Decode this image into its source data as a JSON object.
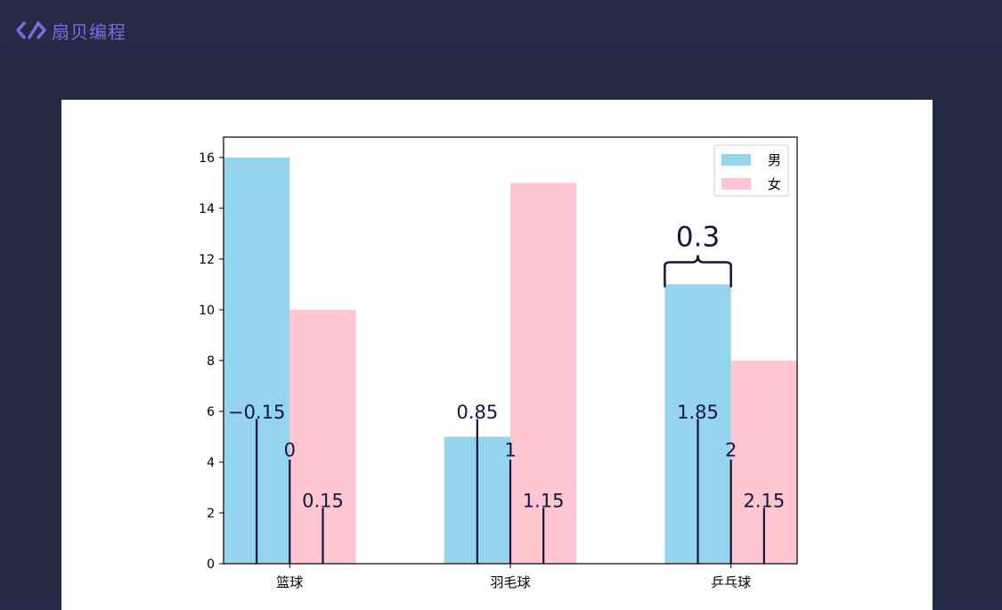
{
  "brand": {
    "name": "扇贝编程",
    "logo_icon": "code-brackets-icon"
  },
  "chart_data": {
    "type": "bar",
    "categories": [
      "篮球",
      "羽毛球",
      "乒乓球"
    ],
    "series": [
      {
        "name": "男",
        "values": [
          16,
          5,
          11
        ],
        "color": "#95d3ef"
      },
      {
        "name": "女",
        "values": [
          10,
          15,
          8
        ],
        "color": "#ffc6d1"
      }
    ],
    "ylim": [
      0,
      16.8
    ],
    "xlim": [
      -0.3,
      2.3
    ],
    "yticks": [
      0,
      2,
      4,
      6,
      8,
      10,
      12,
      14,
      16
    ],
    "legend": {
      "placement": "top-right"
    },
    "annotations": [
      {
        "text": "−0.15",
        "x": -0.15,
        "y": 6,
        "line_to": 5.7
      },
      {
        "text": "0",
        "x": 0,
        "y": 4.5,
        "line_to": 4.1
      },
      {
        "text": "0.15",
        "x": 0.15,
        "y": 2.5,
        "line_to": 2.2
      },
      {
        "text": "0.85",
        "x": 0.85,
        "y": 6,
        "line_to": 5.7
      },
      {
        "text": "1",
        "x": 1,
        "y": 4.5,
        "line_to": 4.1
      },
      {
        "text": "1.15",
        "x": 1.15,
        "y": 2.5,
        "line_to": 2.2
      },
      {
        "text": "1.85",
        "x": 1.85,
        "y": 6,
        "line_to": 5.7
      },
      {
        "text": "2",
        "x": 2,
        "y": 4.5,
        "line_to": 4.1
      },
      {
        "text": "2.15",
        "x": 2.15,
        "y": 2.5,
        "line_to": 2.2
      }
    ],
    "brace_annotation": {
      "text": "0.3",
      "x_from": 1.7,
      "x_to": 2.0,
      "y": 11.8
    }
  }
}
